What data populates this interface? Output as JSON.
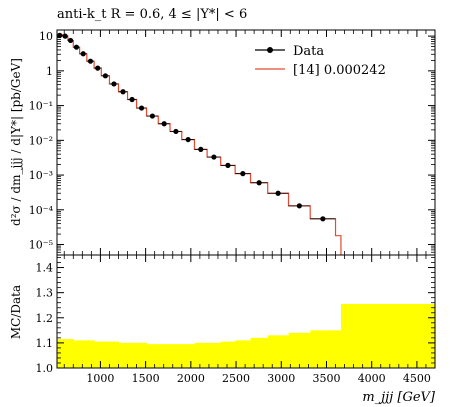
{
  "title": "anti-k_t R = 0.6, 4 ≤ |Y*| < 6",
  "chart_data": [
    {
      "type": "line",
      "panel": "main",
      "ylabel": "d²σ / dm_jjj / d|Y*| [pb/GeV]",
      "yscale": "log",
      "ylim": [
        5e-06,
        15
      ],
      "xlim": [
        520,
        4700
      ],
      "ytick_labels": [
        "10",
        "1",
        "10⁻¹",
        "10⁻²",
        "10⁻³",
        "10⁻⁴",
        "10⁻⁵"
      ],
      "bin_edges": [
        520,
        580,
        640,
        700,
        770,
        850,
        930,
        1010,
        1100,
        1200,
        1300,
        1400,
        1510,
        1640,
        1770,
        1900,
        2040,
        2180,
        2330,
        2490,
        2660,
        2850,
        3080,
        3320,
        3600,
        3660
      ],
      "series": [
        {
          "name": "Data",
          "x": [
            550,
            610,
            670,
            735,
            810,
            890,
            970,
            1055,
            1150,
            1250,
            1350,
            1455,
            1575,
            1705,
            1835,
            1970,
            2110,
            2255,
            2410,
            2575,
            2755,
            2965,
            3200,
            3460
          ],
          "y": [
            10.5,
            10.0,
            7.5,
            4.8,
            3.1,
            1.9,
            1.2,
            0.72,
            0.42,
            0.25,
            0.15,
            0.085,
            0.05,
            0.03,
            0.018,
            0.0105,
            0.0055,
            0.0033,
            0.0019,
            0.0011,
            0.0006,
            0.0003,
            0.00013,
            5.5e-05
          ],
          "color": "#000000"
        },
        {
          "name": "[14] 0.000242",
          "y": [
            11.0,
            10.0,
            7.5,
            4.8,
            3.1,
            1.9,
            1.2,
            0.72,
            0.42,
            0.25,
            0.15,
            0.085,
            0.05,
            0.03,
            0.018,
            0.0105,
            0.0055,
            0.0033,
            0.0019,
            0.0011,
            0.0006,
            0.0003,
            0.00013,
            5.5e-05,
            1.8e-05
          ],
          "color": "#e24a33"
        }
      ]
    },
    {
      "type": "area",
      "panel": "ratio",
      "ylabel": "MC/Data",
      "xlabel": "m_jjj [GeV]",
      "xlim": [
        520,
        4700
      ],
      "ylim": [
        1.0,
        1.45
      ],
      "ytick_labels": [
        "1.0",
        "1.1",
        "1.2",
        "1.3",
        "1.4"
      ],
      "xtick_labels": [
        "1000",
        "1500",
        "2000",
        "2500",
        "3000",
        "3500",
        "4000",
        "4500"
      ],
      "band_edges": [
        520,
        700,
        930,
        1200,
        1510,
        1770,
        2040,
        2330,
        2490,
        2660,
        2850,
        3080,
        3320,
        3600,
        3660,
        4700
      ],
      "band_upper": [
        1.115,
        1.11,
        1.105,
        1.1,
        1.095,
        1.095,
        1.1,
        1.105,
        1.11,
        1.12,
        1.13,
        1.14,
        1.15,
        1.15,
        1.255
      ],
      "band_lower": [
        1.0,
        1.0,
        1.0,
        1.0,
        1.0,
        1.0,
        1.0,
        1.0,
        1.0,
        1.0,
        1.0,
        1.0,
        1.0,
        1.0,
        1.0
      ],
      "color": "#ffff00"
    }
  ]
}
